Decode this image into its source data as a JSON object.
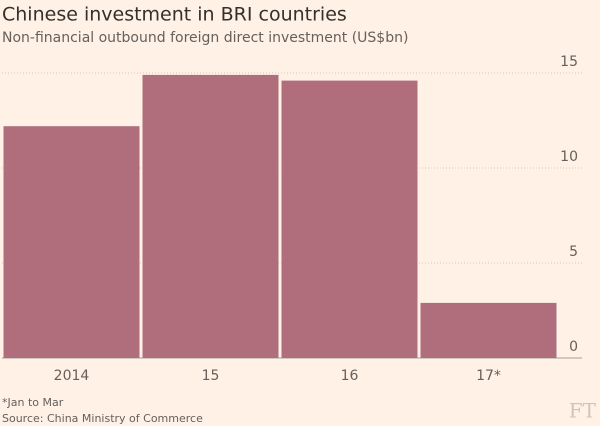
{
  "chart_data": {
    "type": "bar",
    "title": "Chinese investment in BRI countries",
    "subtitle": "Non-financial outbound foreign direct investment (US$bn)",
    "categories": [
      "2014",
      "15",
      "16",
      "17*"
    ],
    "values": [
      12.2,
      14.9,
      14.6,
      2.9
    ],
    "color": "#b06e7d",
    "ylim": [
      0,
      16
    ],
    "yticks": [
      0,
      5,
      10,
      15
    ],
    "grid": true,
    "y_axis_side": "right",
    "footnote": "*Jan to Mar",
    "source": "Source: China Ministry of Commerce",
    "logo": "FT"
  }
}
